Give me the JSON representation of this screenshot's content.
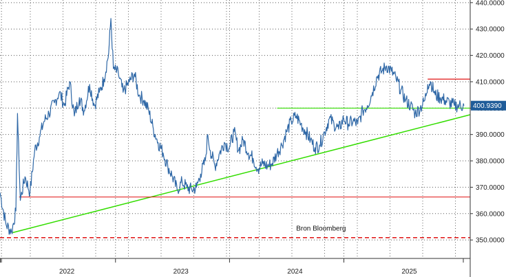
{
  "chart_data": {
    "type": "line",
    "title": "",
    "xlabel": "",
    "ylabel": "",
    "x_range": [
      "2021-06-01",
      "2025-07-15"
    ],
    "ylim": [
      343,
      441
    ],
    "y_ticks": [
      350,
      360,
      370,
      380,
      390,
      400,
      410,
      420,
      430,
      440
    ],
    "y_tick_labels": [
      "350.0000",
      "360.0000",
      "370.0000",
      "380.0000",
      "390.0000",
      "400.0000",
      "410.0000",
      "420.0000",
      "430.0000",
      "440.0000"
    ],
    "x_ticks": [
      {
        "label": "2022",
        "date": "2022-01-01"
      },
      {
        "label": "2023",
        "date": "2023-01-01"
      },
      {
        "label": "2024",
        "date": "2024-01-01"
      },
      {
        "label": "2025",
        "date": "2025-01-01"
      }
    ],
    "grid": true,
    "series": [
      {
        "color": "#2e67a6",
        "points": [
          [
            "2021-06-01",
            368
          ],
          [
            "2021-06-20",
            356
          ],
          [
            "2021-07-08",
            353
          ],
          [
            "2021-07-22",
            361
          ],
          [
            "2021-07-27",
            398
          ],
          [
            "2021-08-05",
            365
          ],
          [
            "2021-08-20",
            374
          ],
          [
            "2021-09-05",
            368
          ],
          [
            "2021-09-20",
            384
          ],
          [
            "2021-10-05",
            389
          ],
          [
            "2021-10-20",
            395
          ],
          [
            "2021-11-05",
            398
          ],
          [
            "2021-11-22",
            402
          ],
          [
            "2021-12-08",
            406
          ],
          [
            "2021-12-24",
            401
          ],
          [
            "2022-01-10",
            410
          ],
          [
            "2022-01-25",
            397
          ],
          [
            "2022-02-10",
            404
          ],
          [
            "2022-02-25",
            399
          ],
          [
            "2022-03-15",
            409
          ],
          [
            "2022-03-30",
            401
          ],
          [
            "2022-04-15",
            406
          ],
          [
            "2022-04-30",
            411
          ],
          [
            "2022-05-15",
            421
          ],
          [
            "2022-05-22",
            434
          ],
          [
            "2022-05-30",
            415
          ],
          [
            "2022-06-15",
            413
          ],
          [
            "2022-06-30",
            406
          ],
          [
            "2022-07-20",
            410
          ],
          [
            "2022-08-05",
            413
          ],
          [
            "2022-08-20",
            405
          ],
          [
            "2022-09-05",
            403
          ],
          [
            "2022-09-20",
            399
          ],
          [
            "2022-10-05",
            392
          ],
          [
            "2022-10-20",
            387
          ],
          [
            "2022-11-05",
            383
          ],
          [
            "2022-11-20",
            378
          ],
          [
            "2022-12-05",
            374
          ],
          [
            "2022-12-20",
            369
          ],
          [
            "2023-01-05",
            372
          ],
          [
            "2023-01-20",
            370
          ],
          [
            "2023-02-05",
            369
          ],
          [
            "2023-02-20",
            370
          ],
          [
            "2023-03-05",
            375
          ],
          [
            "2023-03-20",
            380
          ],
          [
            "2023-03-28",
            390
          ],
          [
            "2023-04-05",
            384
          ],
          [
            "2023-04-20",
            378
          ],
          [
            "2023-05-05",
            383
          ],
          [
            "2023-05-20",
            387
          ],
          [
            "2023-06-05",
            385
          ],
          [
            "2023-06-20",
            391
          ],
          [
            "2023-07-05",
            384
          ],
          [
            "2023-07-20",
            388
          ],
          [
            "2023-08-05",
            383
          ],
          [
            "2023-08-20",
            381
          ],
          [
            "2023-09-05",
            377
          ],
          [
            "2023-09-20",
            379
          ],
          [
            "2023-10-05",
            378
          ],
          [
            "2023-10-20",
            379
          ],
          [
            "2023-11-05",
            383
          ],
          [
            "2023-11-20",
            386
          ],
          [
            "2023-12-05",
            391
          ],
          [
            "2023-12-20",
            395
          ],
          [
            "2024-01-05",
            397
          ],
          [
            "2024-01-20",
            394
          ],
          [
            "2024-02-05",
            391
          ],
          [
            "2024-02-20",
            388
          ],
          [
            "2024-03-05",
            385
          ],
          [
            "2024-03-20",
            386
          ],
          [
            "2024-04-05",
            391
          ],
          [
            "2024-04-20",
            396
          ],
          [
            "2024-05-05",
            394
          ],
          [
            "2024-05-20",
            392
          ],
          [
            "2024-06-05",
            396
          ],
          [
            "2024-06-20",
            394
          ],
          [
            "2024-07-05",
            395
          ],
          [
            "2024-07-20",
            394
          ],
          [
            "2024-08-05",
            399
          ],
          [
            "2024-08-20",
            401
          ],
          [
            "2024-09-05",
            406
          ],
          [
            "2024-09-20",
            412
          ],
          [
            "2024-10-05",
            414
          ],
          [
            "2024-10-20",
            416
          ],
          [
            "2024-11-05",
            414
          ],
          [
            "2024-11-20",
            411
          ],
          [
            "2024-12-05",
            407
          ],
          [
            "2024-12-20",
            403
          ],
          [
            "2025-01-05",
            401
          ],
          [
            "2025-01-20",
            398
          ],
          [
            "2025-02-05",
            400
          ],
          [
            "2025-02-20",
            403
          ],
          [
            "2025-03-01",
            409
          ],
          [
            "2025-03-10",
            410
          ],
          [
            "2025-03-25",
            405
          ],
          [
            "2025-04-10",
            404
          ],
          [
            "2025-04-25",
            403
          ],
          [
            "2025-05-10",
            402
          ],
          [
            "2025-05-25",
            401
          ],
          [
            "2025-06-10",
            401
          ],
          [
            "2025-06-25",
            400.939
          ]
        ]
      }
    ],
    "overlay_lines": [
      {
        "color": "#33dd00",
        "width": 1.5,
        "dash": "",
        "from": [
          "2021-07-12",
          352.8
        ],
        "to": [
          "2025-07-15",
          397.5
        ]
      },
      {
        "color": "#33dd00",
        "width": 1.2,
        "dash": "",
        "from": [
          "2023-11-05",
          400.0
        ],
        "to": [
          "2025-07-15",
          400.0
        ]
      },
      {
        "color": "#e01010",
        "width": 1.2,
        "dash": "",
        "from": [
          "2025-03-01",
          411.0
        ],
        "to": [
          "2025-07-15",
          411.0
        ]
      },
      {
        "color": "#e01010",
        "width": 1.0,
        "dash": "",
        "from": [
          "2021-08-01",
          366.3
        ],
        "to": [
          "2025-07-15",
          366.3
        ]
      },
      {
        "color": "#e01010",
        "width": 1.5,
        "dash": "6,4",
        "from": [
          "2021-06-01",
          350.9
        ],
        "to": [
          "2025-07-15",
          350.9
        ]
      }
    ],
    "last_value": {
      "value": 400.939,
      "label": "400.9390",
      "bg_color": "#1f5c99"
    },
    "annotations": [
      {
        "text": "Bron Bloomberg",
        "date": "2024-01-05",
        "y": 354.6
      }
    ]
  }
}
